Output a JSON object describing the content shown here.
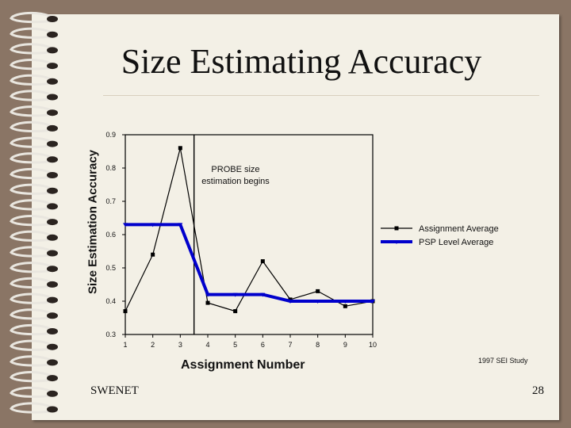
{
  "slide": {
    "title": "Size Estimating Accuracy",
    "footer_left": "SWENET",
    "page_number": "28",
    "source_note": "1997 SEI Study"
  },
  "chart_data": {
    "type": "line",
    "x": [
      1,
      2,
      3,
      4,
      5,
      6,
      7,
      8,
      9,
      10
    ],
    "ylabel": "Size Estimation Accuracy",
    "xlabel": "Assignment Number",
    "ylim": [
      0.3,
      0.9
    ],
    "xticks": [
      "1",
      "2",
      "3",
      "4",
      "5",
      "6",
      "7",
      "8",
      "9",
      "10"
    ],
    "yticks": [
      "0.3",
      "0.4",
      "0.5",
      "0.6",
      "0.7",
      "0.8",
      "0.9"
    ],
    "series": [
      {
        "name": "Assignment Average",
        "values": [
          0.37,
          0.54,
          0.86,
          0.395,
          0.37,
          0.52,
          0.405,
          0.43,
          0.385,
          0.4
        ],
        "color": "#000000"
      },
      {
        "name": "PSP Level Average",
        "values": [
          0.63,
          0.63,
          0.63,
          0.42,
          0.42,
          0.42,
          0.4,
          0.4,
          0.4,
          0.4
        ],
        "color": "#0000cc"
      }
    ],
    "annotation": {
      "line_1": "PROBE size",
      "line_2": "estimation begins",
      "x_value": 3.5
    },
    "legend_position": "right",
    "grid": false
  }
}
